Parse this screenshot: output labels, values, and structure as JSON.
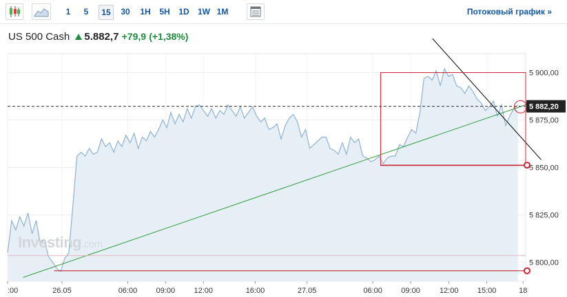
{
  "toolbar": {
    "timeframes": [
      "1",
      "5",
      "15",
      "30",
      "1H",
      "5H",
      "1D",
      "1W",
      "1M"
    ],
    "active_timeframe": "15",
    "stream_link": "Потоковый график »",
    "icons": [
      "candlestick-icon",
      "area-chart-icon",
      "table-icon"
    ]
  },
  "quote": {
    "name": "US 500 Cash",
    "price": "5.882,7",
    "change": "+79,9",
    "change_pct": "(+1,38%)",
    "direction_icon": "up-arrow-icon"
  },
  "watermark": {
    "brand": "Investing",
    "domain": ".com"
  },
  "colors": {
    "area_fill": "#e6eef6",
    "line": "#8fb2d0",
    "trend_green": "#2e9e3b",
    "trend_black": "#000000",
    "annotation_red": "#c82333",
    "price_label_bg": "#222222",
    "up": "#1f8a3d"
  },
  "chart_data": {
    "type": "area",
    "x_ticks": [
      ":00",
      "26.05",
      "06:00",
      "09:00",
      "12:00",
      "16:00",
      "27.05",
      "06:00",
      "09:00",
      "12:00",
      "15:00",
      "18"
    ],
    "y_ticks": [
      "5 900,00",
      "5 875,00",
      "5 850,00",
      "5 825,00",
      "5 800,00"
    ],
    "y_tick_values": [
      5900,
      5875,
      5850,
      5825,
      5800
    ],
    "ylim": [
      5790,
      5910
    ],
    "current_price_label": "5 882,20",
    "current_price": 5882.2,
    "series": [
      {
        "values": [
          5805,
          5822,
          5817,
          5824,
          5819,
          5826,
          5815,
          5822,
          5810,
          5812,
          5803,
          5800,
          5797,
          5795,
          5802,
          5805,
          5830,
          5856,
          5858,
          5856,
          5860,
          5857,
          5858,
          5865,
          5861,
          5863,
          5858,
          5864,
          5861,
          5867,
          5863,
          5868,
          5860,
          5866,
          5864,
          5869,
          5866,
          5870,
          5875,
          5871,
          5879,
          5873,
          5878,
          5874,
          5881,
          5876,
          5882,
          5883,
          5880,
          5877,
          5881,
          5876,
          5880,
          5878,
          5883,
          5880,
          5877,
          5882,
          5876,
          5879,
          5882,
          5877,
          5874,
          5876,
          5870,
          5871,
          5873,
          5865,
          5872,
          5876,
          5878,
          5874,
          5866,
          5870,
          5860,
          5862,
          5864,
          5866,
          5866,
          5860,
          5859,
          5857,
          5863,
          5857,
          5866,
          5863,
          5865,
          5856,
          5855,
          5853,
          5854,
          5856,
          5852,
          5855,
          5856,
          5856,
          5862,
          5861,
          5866,
          5870,
          5868,
          5879,
          5897,
          5898,
          5896,
          5901,
          5893,
          5902,
          5898,
          5899,
          5893,
          5892,
          5889,
          5893,
          5890,
          5886,
          5884,
          5880,
          5882,
          5885,
          5877,
          5883,
          5872,
          5877,
          5881,
          5883
        ]
      }
    ],
    "annotations": [
      {
        "kind": "horizontal-dashed",
        "y": 5882.2
      },
      {
        "kind": "trendline-green",
        "from": [
          0.03,
          5792
        ],
        "to": [
          1.0,
          5883
        ]
      },
      {
        "kind": "trendline-black",
        "from": [
          0.82,
          5918
        ],
        "to": [
          1.03,
          5854
        ]
      },
      {
        "kind": "rectangle-red",
        "x": [
          0.72,
          1.0
        ],
        "y": [
          5851,
          5900
        ]
      },
      {
        "kind": "horizontal-red",
        "y": 5851.2,
        "x_from": 0.72
      },
      {
        "kind": "horizontal-red",
        "y": 5795.5,
        "x_from": 0.09
      },
      {
        "kind": "horizontal-thin-red",
        "y": 5803.5
      },
      {
        "kind": "circle-red",
        "at": [
          0.99,
          5882
        ]
      }
    ],
    "grid": true
  }
}
